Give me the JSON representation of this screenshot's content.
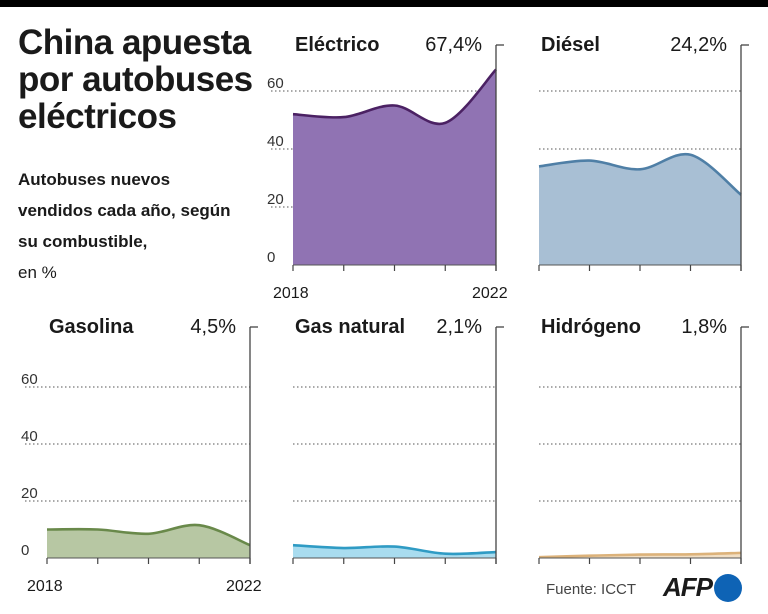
{
  "header": {
    "title": "China apuesta por autobuses eléctricos",
    "subtitle": "Autobuses nuevos vendidos cada año, según su combustible,",
    "unit": "en %"
  },
  "footer": {
    "source": "Fuente: ICCT",
    "logo": "AFP",
    "logo_color": "#0e63b5"
  },
  "chart_data": {
    "type": "area",
    "ylim": [
      0,
      70
    ],
    "yticks": [
      0,
      20,
      40,
      60
    ],
    "x": [
      2018,
      2019,
      2020,
      2021,
      2022
    ],
    "x_tick_labels": [
      "2018",
      "2022"
    ],
    "grid": true,
    "series": [
      {
        "name": "Eléctrico",
        "label": "67,4%",
        "values": [
          52,
          51,
          55,
          49,
          67.4
        ],
        "line": "#4b2163",
        "fill": "#9073b3"
      },
      {
        "name": "Diésel",
        "label": "24,2%",
        "values": [
          34,
          36,
          33,
          38,
          24.2
        ],
        "line": "#4f7fa6",
        "fill": "#a8bfd4"
      },
      {
        "name": "Gasolina",
        "label": "4,5%",
        "values": [
          10,
          10,
          8.5,
          11.5,
          4.5
        ],
        "line": "#69894a",
        "fill": "#b7c7a3"
      },
      {
        "name": "Gas natural",
        "label": "2,1%",
        "values": [
          4.5,
          3.5,
          4,
          1.5,
          2.1
        ],
        "line": "#2f9bc4",
        "fill": "#a9dcef"
      },
      {
        "name": "Hidrógeno",
        "label": "1,8%",
        "values": [
          0.3,
          0.8,
          1.2,
          1.3,
          1.8
        ],
        "line": "#dcb27a",
        "fill": "#f2dfc4"
      }
    ]
  }
}
